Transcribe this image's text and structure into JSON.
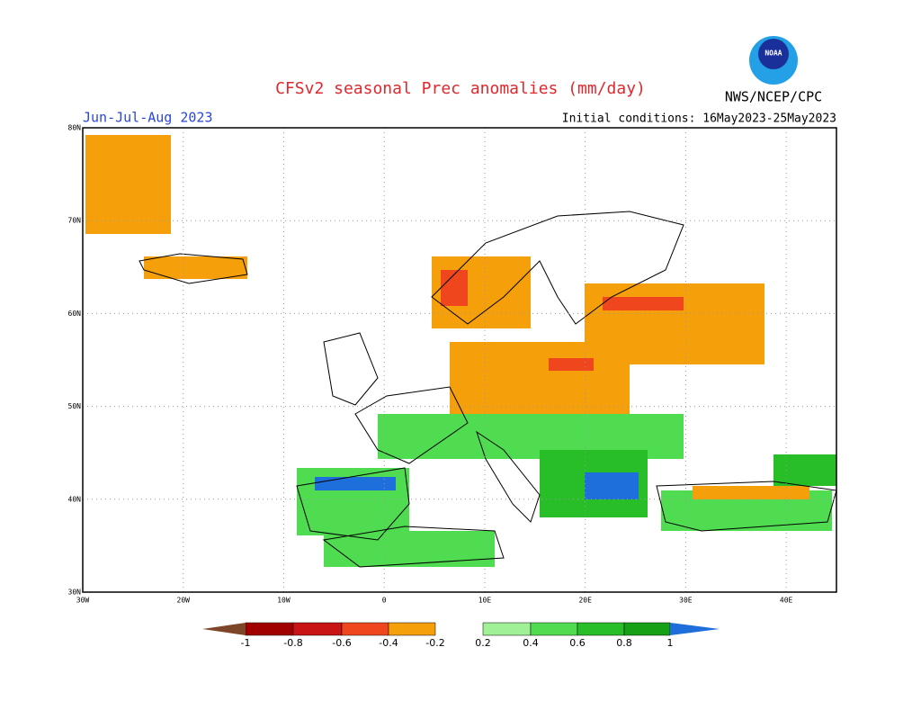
{
  "title": "CFSv2 seasonal Prec anomalies (mm/day)",
  "period": "Jun-Jul-Aug 2023",
  "agency": "NWS/NCEP/CPC",
  "logo_text": "NOAA",
  "initial_conditions": "Initial conditions: 16May2023-25May2023",
  "lat_ticks": [
    "30N",
    "40N",
    "50N",
    "60N",
    "70N",
    "80N"
  ],
  "lon_ticks": [
    "30W",
    "20W",
    "10W",
    "0",
    "10E",
    "20E",
    "30E",
    "40E"
  ],
  "colorbar": {
    "ticks": [
      -1,
      -0.8,
      -0.6,
      -0.4,
      -0.2,
      0.2,
      0.4,
      0.6,
      0.8,
      1
    ],
    "colors": [
      "#a00000",
      "#c81414",
      "#f0461e",
      "#f5a00a",
      "#a0f096",
      "#50dc50",
      "#28be28",
      "#16a016"
    ],
    "under_color": "#7d4628",
    "over_color": "#1e6edc"
  }
}
